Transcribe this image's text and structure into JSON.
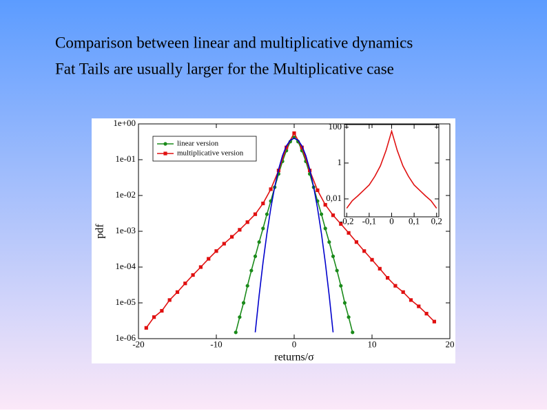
{
  "slide": {
    "lines": [
      "Comparison between linear and multiplicative dynamics",
      "Fat Tails are usually larger for the Multiplicative case"
    ]
  },
  "chart_data": [
    {
      "type": "line",
      "x_label": "returns/σ",
      "y_label": "pdf",
      "log_y": true,
      "legend": "upper left",
      "xlim": [
        -20,
        20
      ],
      "xticks": [
        -20,
        -10,
        0,
        10,
        20
      ],
      "ylim": [
        1e-06,
        1
      ],
      "yticks": [
        {
          "value": 1,
          "label": "1e+00"
        },
        {
          "value": 0.1,
          "label": "1e-01"
        },
        {
          "value": 0.01,
          "label": "1e-02"
        },
        {
          "value": 0.001,
          "label": "1e-03"
        },
        {
          "value": 0.0001,
          "label": "1e-04"
        },
        {
          "value": 1e-05,
          "label": "1e-05"
        },
        {
          "value": 1e-06,
          "label": "1e-06"
        }
      ],
      "series": [
        {
          "name": "linear version",
          "color": "#1a8a1a",
          "marker": "circle",
          "x": [
            -7.5,
            -7,
            -6.5,
            -6,
            -5.5,
            -5,
            -4.5,
            -4,
            -3.5,
            -3,
            -2.5,
            -2,
            -1.5,
            -1,
            -0.5,
            0,
            0.5,
            1,
            1.5,
            2,
            2.5,
            3,
            3.5,
            4,
            4.5,
            5,
            5.5,
            6,
            6.5,
            7,
            7.5
          ],
          "values": [
            1.5e-06,
            4e-06,
            1e-05,
            3e-05,
            8e-05,
            0.0002,
            0.0005,
            0.0012,
            0.003,
            0.007,
            0.017,
            0.04,
            0.09,
            0.18,
            0.32,
            0.42,
            0.32,
            0.18,
            0.09,
            0.04,
            0.017,
            0.007,
            0.003,
            0.0012,
            0.0005,
            0.0002,
            8e-05,
            3e-05,
            1e-05,
            4e-06,
            1.5e-06
          ]
        },
        {
          "name": "multiplicative version",
          "color": "#e01010",
          "marker": "square",
          "x": [
            -19,
            -18,
            -17,
            -16,
            -15,
            -14,
            -13,
            -12,
            -11,
            -10,
            -9,
            -8,
            -7,
            -6,
            -5,
            -4,
            -3,
            -2,
            -1,
            0,
            1,
            2,
            3,
            4,
            5,
            6,
            7,
            8,
            9,
            10,
            11,
            12,
            13,
            14,
            15,
            16,
            17,
            18
          ],
          "values": [
            2e-06,
            4e-06,
            6e-06,
            1.2e-05,
            2e-05,
            3.5e-05,
            6e-05,
            0.0001,
            0.00017,
            0.00028,
            0.00045,
            0.0007,
            0.0011,
            0.0018,
            0.003,
            0.006,
            0.015,
            0.05,
            0.22,
            0.55,
            0.22,
            0.05,
            0.014,
            0.0055,
            0.0028,
            0.0016,
            0.0009,
            0.0005,
            0.00028,
            0.00016,
            9e-05,
            5e-05,
            3e-05,
            2e-05,
            1.2e-05,
            8e-06,
            5e-06,
            3e-06
          ]
        },
        {
          "color": "#0000cc",
          "x": [
            -5,
            -4.5,
            -4,
            -3.5,
            -3,
            -2.5,
            -2,
            -1.5,
            -1,
            -0.5,
            0,
            0.5,
            1,
            1.5,
            2,
            2.5,
            3,
            3.5,
            4,
            4.5,
            5
          ],
          "values": [
            1.5e-06,
            1.6e-05,
            0.000134,
            0.00087,
            0.0044,
            0.0175,
            0.054,
            0.13,
            0.242,
            0.352,
            0.399,
            0.352,
            0.242,
            0.13,
            0.054,
            0.0175,
            0.0044,
            0.00087,
            0.000134,
            1.6e-05,
            1.5e-06
          ]
        }
      ]
    },
    {
      "type": "line",
      "log_y": true,
      "xlim": [
        -0.21,
        0.21
      ],
      "xticks": [
        {
          "value": -0.2,
          "label": "-0,2"
        },
        {
          "value": -0.1,
          "label": "-0,1"
        },
        0,
        {
          "value": 0.1,
          "label": "0,1"
        },
        {
          "value": 0.2,
          "label": "0,2"
        }
      ],
      "ylim": [
        0.001,
        140
      ],
      "yticks": [
        100,
        1,
        {
          "value": 0.01,
          "label": "0,01"
        }
      ],
      "series": [
        {
          "color": "#e01010",
          "x": [
            -0.2,
            -0.175,
            -0.15,
            -0.125,
            -0.1,
            -0.075,
            -0.05,
            -0.025,
            0,
            0.025,
            0.05,
            0.075,
            0.1,
            0.125,
            0.15,
            0.175,
            0.2
          ],
          "values": [
            0.003,
            0.008,
            0.015,
            0.03,
            0.06,
            0.18,
            0.7,
            5,
            60,
            5,
            0.7,
            0.18,
            0.06,
            0.03,
            0.015,
            0.008,
            0.003
          ]
        }
      ]
    }
  ]
}
